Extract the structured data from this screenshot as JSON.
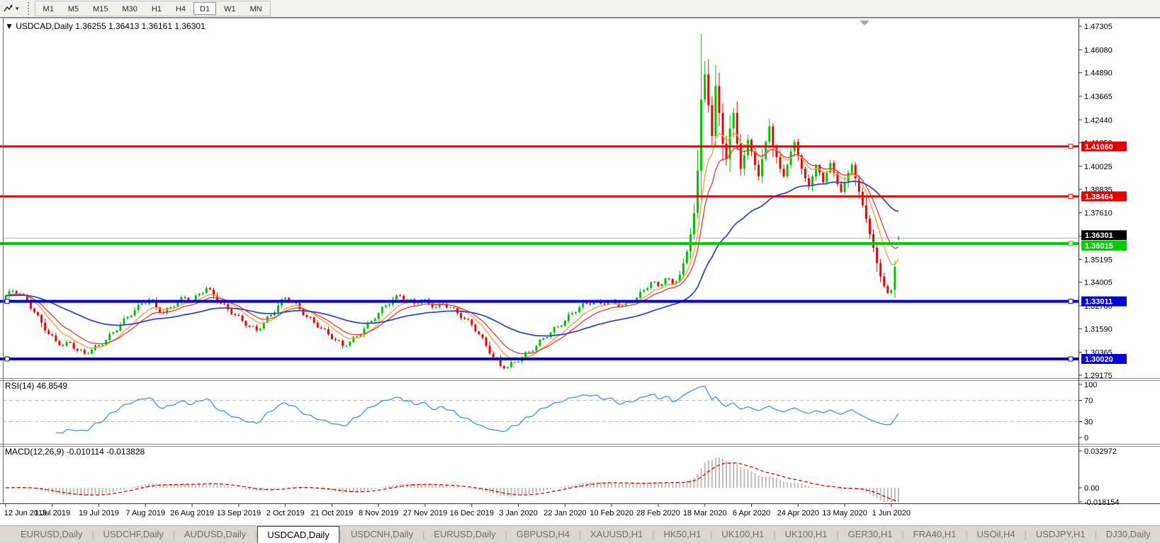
{
  "toolbar": {
    "timeframes": [
      "M1",
      "M5",
      "M15",
      "M30",
      "H1",
      "H4",
      "D1",
      "W1",
      "MN"
    ],
    "active_timeframe": "D1",
    "dropdown_icon": "▾"
  },
  "chart_window": {
    "collapse_icon": "▼",
    "title": "USDCAD,Daily",
    "ohlc_text": "1.36255 1.36413 1.36161 1.36301",
    "price_axis": [
      "1.47305",
      "1.46080",
      "1.44890",
      "1.43665",
      "1.42440",
      "1.41250",
      "1.40025",
      "1.38835",
      "1.37610",
      "1.36390",
      "1.35195",
      "1.34005",
      "1.32780",
      "1.31590",
      "1.30365",
      "1.29175"
    ],
    "hlines": [
      {
        "label": "1.41060",
        "price": 1.4106,
        "color": "#e80000",
        "width": 3,
        "left_handle": false
      },
      {
        "label": "1.38464",
        "price": 1.38464,
        "color": "#e80000",
        "width": 3,
        "left_handle": false
      },
      {
        "label": "1.36015",
        "price": 1.36015,
        "color": "#00cc00",
        "width": 4,
        "left_handle": false
      },
      {
        "label": "1.33011",
        "price": 1.33011,
        "color": "#0000d8",
        "width": 4,
        "left_handle": true
      },
      {
        "label": "1.30020",
        "price": 1.3002,
        "color": "#0000d8",
        "width": 4,
        "left_handle": true
      }
    ],
    "bid_label": "1.36301",
    "bid_price": 1.36301,
    "date_axis": [
      "12 Jun 2019",
      "1 Jul 2019",
      "19 Jul 2019",
      "7 Aug 2019",
      "26 Aug 2019",
      "13 Sep 2019",
      "2 Oct 2019",
      "21 Oct 2019",
      "8 Nov 2019",
      "27 Nov 2019",
      "16 Dec 2019",
      "3 Jan 2020",
      "22 Jan 2020",
      "10 Feb 2020",
      "28 Feb 2020",
      "18 Mar 2020",
      "6 Apr 2020",
      "24 Apr 2020",
      "13 May 2020",
      "1 Jun 2020"
    ]
  },
  "rsi_panel": {
    "label": "RSI(14) 46.8549",
    "axis": [
      "100",
      "70",
      "30",
      "0"
    ],
    "levels": [
      70,
      30
    ],
    "line_color": "#3c96e8"
  },
  "macd_panel": {
    "label": "MACD(12,26,9) -0.010114 -0.013828",
    "axis_top": "0.032972",
    "axis_zero": "0.00",
    "axis_bottom": "-0.018154",
    "histogram_color": "#bdbdbd",
    "signal_color": "#e80000"
  },
  "tab_bar": {
    "tabs": [
      "EURUSD,Daily",
      "USDCHF,Daily",
      "AUDUSD,Daily",
      "USDCAD,Daily",
      "USDCNH,Daily",
      "EURUSD,Daily",
      "GBPUSD,H4",
      "XAUUSD,H1",
      "HK50,H1",
      "UK100,H1",
      "UK100,H1",
      "GER30,H1",
      "FRA40,H1",
      "USOil,H4",
      "USDJPY,H1",
      "DJ30,Daily"
    ],
    "active_index": 3,
    "scroll_left_icon": "◄",
    "scroll_right_icon": "►"
  },
  "colors": {
    "candle_up": "#00c400",
    "candle_down": "#f40000",
    "ma_fast": "#f7a33c",
    "ma_mid": "#e23a3a",
    "ma_slow": "#2f49c6",
    "bid_line": "#b4b4b4",
    "bid_label_bg": "#000000"
  },
  "chart_data": {
    "type": "candlestick",
    "symbol": "USDCAD",
    "timeframe": "Daily",
    "current": {
      "open": 1.36255,
      "high": 1.36413,
      "low": 1.36161,
      "close": 1.36301
    },
    "y_axis_range": [
      1.29175,
      1.47305
    ],
    "hline_prices": [
      1.4106,
      1.38464,
      1.36015,
      1.33011,
      1.3002
    ],
    "spike": {
      "index": 194,
      "high": 1.469
    },
    "indicators": {
      "ma_fast": {
        "type": "EMA",
        "period": 8
      },
      "ma_mid": {
        "type": "EMA",
        "period": 13
      },
      "ma_slow": {
        "type": "EMA",
        "period": 45
      },
      "rsi": {
        "period": 14,
        "value": 46.8549,
        "levels": [
          70,
          30
        ]
      },
      "macd": {
        "fast": 12,
        "slow": 26,
        "signal": 9,
        "value": -0.010114,
        "signal_value": -0.013828
      }
    },
    "closes": [
      1.333,
      1.3354,
      1.3355,
      1.3338,
      1.334,
      1.3332,
      1.33,
      1.3263,
      1.3245,
      1.323,
      1.319,
      1.315,
      1.313,
      1.3124,
      1.3095,
      1.3073,
      1.307,
      1.309,
      1.3085,
      1.3055,
      1.3045,
      1.3049,
      1.303,
      1.303,
      1.305,
      1.3072,
      1.307,
      1.3075,
      1.31,
      1.3132,
      1.314,
      1.315,
      1.318,
      1.3212,
      1.322,
      1.3228,
      1.3255,
      1.3284,
      1.329,
      1.329,
      1.331,
      1.3302,
      1.327,
      1.3245,
      1.324,
      1.3267,
      1.327,
      1.3275,
      1.33,
      1.3322,
      1.332,
      1.33,
      1.33,
      1.3332,
      1.334,
      1.3345,
      1.337,
      1.3362,
      1.333,
      1.33,
      1.329,
      1.3287,
      1.326,
      1.3235,
      1.323,
      1.3227,
      1.32,
      1.3175,
      1.317,
      1.3172,
      1.315,
      1.316,
      1.319,
      1.3222,
      1.323,
      1.3245,
      1.328,
      1.3312,
      1.332,
      1.33,
      1.33,
      1.3292,
      1.326,
      1.323,
      1.322,
      1.3217,
      1.319,
      1.3165,
      1.316,
      1.3157,
      1.313,
      1.3105,
      1.31,
      1.3097,
      1.307,
      1.307,
      1.309,
      1.3117,
      1.312,
      1.313,
      1.316,
      1.3192,
      1.32,
      1.321,
      1.324,
      1.3272,
      1.328,
      1.3285,
      1.331,
      1.3332,
      1.333,
      1.331,
      1.331,
      1.3312,
      1.329,
      1.329,
      1.331,
      1.3312,
      1.329,
      1.327,
      1.327,
      1.3292,
      1.329,
      1.327,
      1.327,
      1.3267,
      1.324,
      1.3215,
      1.321,
      1.3207,
      1.318,
      1.3145,
      1.313,
      1.3112,
      1.307,
      1.303,
      1.301,
      1.3,
      1.2965,
      1.2953,
      1.296,
      1.2985,
      1.2985,
      1.2988,
      1.301,
      1.3037,
      1.304,
      1.3045,
      1.307,
      1.3102,
      1.311,
      1.3115,
      1.314,
      1.3167,
      1.317,
      1.3175,
      1.32,
      1.3232,
      1.324,
      1.3245,
      1.327,
      1.3292,
      1.329,
      1.3285,
      1.33,
      1.3307,
      1.329,
      1.3285,
      1.33,
      1.3307,
      1.329,
      1.3275,
      1.328,
      1.3302,
      1.33,
      1.33,
      1.332,
      1.3352,
      1.336,
      1.337,
      1.34,
      1.3402,
      1.338,
      1.339,
      1.342,
      1.3417,
      1.339,
      1.3405,
      1.344,
      1.35,
      1.356,
      1.365,
      1.376,
      1.398,
      1.435,
      1.448,
      1.432,
      1.416,
      1.442,
      1.428,
      1.412,
      1.404,
      1.42,
      1.428,
      1.412,
      1.399,
      1.406,
      1.414,
      1.408,
      1.401,
      1.395,
      1.404,
      1.413,
      1.421,
      1.411,
      1.405,
      1.399,
      1.395,
      1.401,
      1.408,
      1.413,
      1.406,
      1.399,
      1.394,
      1.39,
      1.395,
      1.401,
      1.397,
      1.392,
      1.397,
      1.402,
      1.397,
      1.391,
      1.387,
      1.392,
      1.397,
      1.401,
      1.394,
      1.387,
      1.38,
      1.373,
      1.365,
      1.358,
      1.35,
      1.343,
      1.338,
      1.3345,
      1.336,
      1.348,
      1.363
    ]
  }
}
